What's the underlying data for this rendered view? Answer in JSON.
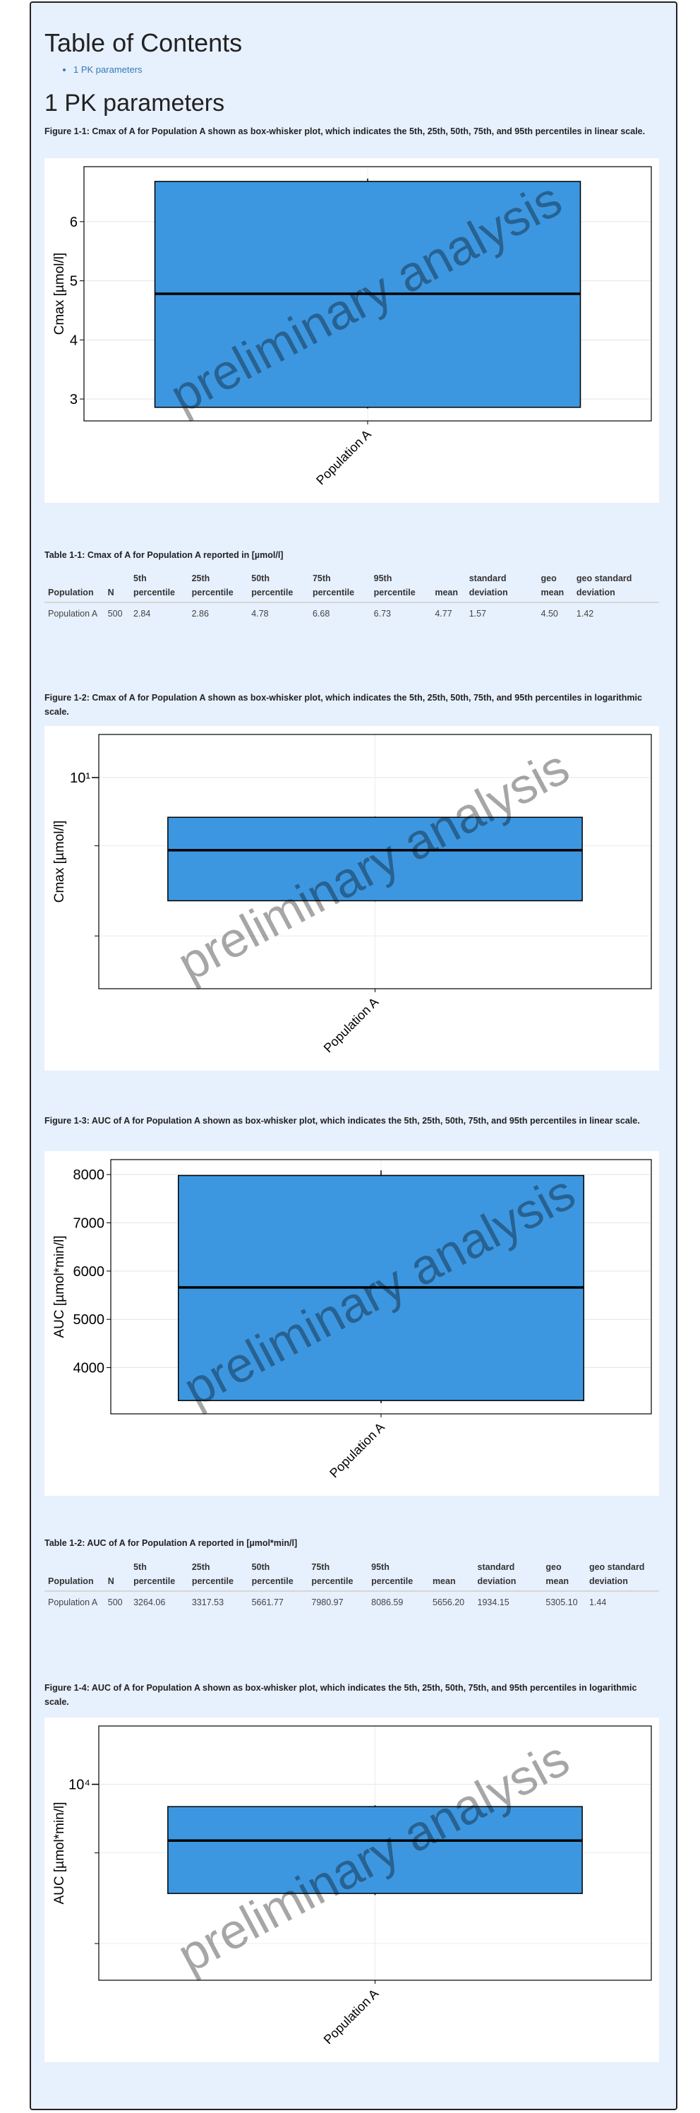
{
  "toc": {
    "title": "Table of Contents",
    "items": [
      "1 PK parameters"
    ]
  },
  "section": {
    "title": "1 PK parameters"
  },
  "tables": [
    {
      "caption": "Table 1-1: Cmax of A for Population A reported in [µmol/l]",
      "columns": [
        "Population",
        "N",
        "5th percentile",
        "25th percentile",
        "50th percentile",
        "75th percentile",
        "95th percentile",
        "mean",
        "standard deviation",
        "geo mean",
        "geo standard deviation"
      ],
      "rows": [
        [
          "Population A",
          "500",
          "2.84",
          "2.86",
          "4.78",
          "6.68",
          "6.73",
          "4.77",
          "1.57",
          "4.50",
          "1.42"
        ]
      ]
    },
    {
      "caption": "Table 1-2: AUC of A for Population A reported in [µmol*min/l]",
      "columns": [
        "Population",
        "N",
        "5th percentile",
        "25th percentile",
        "50th percentile",
        "75th percentile",
        "95th percentile",
        "mean",
        "standard deviation",
        "geo mean",
        "geo standard deviation"
      ],
      "rows": [
        [
          "Population A",
          "500",
          "3264.06",
          "3317.53",
          "5661.77",
          "7980.97",
          "8086.59",
          "5656.20",
          "1934.15",
          "5305.10",
          "1.44"
        ]
      ]
    }
  ],
  "chart_data": [
    {
      "type": "box",
      "caption": "Figure 1-1: Cmax of A for Population A shown as box-whisker plot, which indicates the 5th, 25th, 50th, 75th, and 95th percentiles in linear scale.",
      "ylabel": "Cmax [µmol/l]",
      "categories": [
        "Population A"
      ],
      "boxes": [
        {
          "p5": 2.84,
          "p25": 2.86,
          "median": 4.78,
          "p75": 6.68,
          "p95": 6.73
        }
      ],
      "color": "#3d97e0",
      "ylim": [
        2.63,
        6.93
      ],
      "yticks": [
        3,
        4,
        5,
        6
      ],
      "log_scale": false,
      "grid": true,
      "watermark": "preliminary analysis"
    },
    {
      "type": "box",
      "caption": "Figure 1-2: Cmax of A for Population A shown as box-whisker plot, which indicates the 5th, 25th, 50th, 75th, and 95th percentiles in logarithmic scale.",
      "ylabel": "Cmax [µmol/l]",
      "categories": [
        "Population A"
      ],
      "boxes": [
        {
          "p5": 2.84,
          "p25": 2.86,
          "median": 4.78,
          "p75": 6.68,
          "p95": 6.73
        }
      ],
      "color": "#3d97e0",
      "ylim": [
        1.17,
        15.5
      ],
      "yticks": [
        {
          "value": 10,
          "label": "10¹"
        }
      ],
      "minor_yticks": [
        2,
        5
      ],
      "log_scale": true,
      "grid": true,
      "watermark": "preliminary analysis"
    },
    {
      "type": "box",
      "caption": "Figure 1-3: AUC of A for Population A shown as box-whisker plot, which indicates the 5th, 25th, 50th, 75th, and 95th percentiles in linear scale.",
      "ylabel": "AUC [µmol*min/l]",
      "categories": [
        "Population A"
      ],
      "boxes": [
        {
          "p5": 3264.06,
          "p25": 3317.53,
          "median": 5661.77,
          "p75": 7980.97,
          "p95": 8086.59
        }
      ],
      "color": "#3d97e0",
      "ylim": [
        3042,
        8310
      ],
      "yticks": [
        4000,
        5000,
        6000,
        7000,
        8000
      ],
      "log_scale": false,
      "grid": true,
      "watermark": "preliminary analysis"
    },
    {
      "type": "box",
      "caption": "Figure 1-4: AUC of A for Population A shown as box-whisker plot, which indicates the 5th, 25th, 50th, 75th, and 95th percentiles in logarithmic scale.",
      "ylabel": "AUC [µmol*min/l]",
      "categories": [
        "Population A"
      ],
      "boxes": [
        {
          "p5": 3264.06,
          "p25": 3317.53,
          "median": 5661.77,
          "p75": 7980.97,
          "p95": 8086.59
        }
      ],
      "color": "#3d97e0",
      "ylim": [
        1380,
        18030
      ],
      "yticks": [
        {
          "value": 10000,
          "label": "10⁴"
        }
      ],
      "minor_yticks": [
        2000,
        5000
      ],
      "log_scale": true,
      "grid": true,
      "watermark": "preliminary analysis"
    }
  ]
}
